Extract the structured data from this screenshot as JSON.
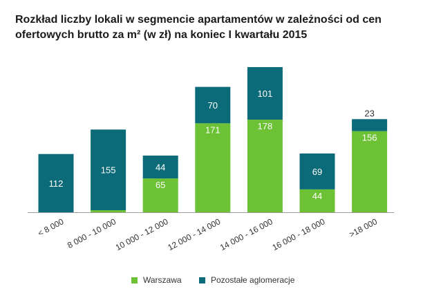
{
  "chart_data": {
    "type": "bar",
    "stacked": true,
    "title": "Rozkład liczby lokali w segmencie apartamentów w zależności od cen ofertowych brutto za m² (w zł) na koniec I kwartału 2015",
    "title_lines": [
      "Rozkład liczby lokali w segmencie apartamentów w zależności od cen",
      "ofertowych brutto za m² (w zł) na koniec I kwartału 2015"
    ],
    "xlabel": "",
    "ylabel": "",
    "categories": [
      "< 8 000",
      "8 000 - 10 000",
      "10 000 - 12 000",
      "12 000 - 14 000",
      "14 000 - 16 000",
      "16 000 - 18 000",
      ">18 000"
    ],
    "series": [
      {
        "name": "Warszawa",
        "color": "#6dc135",
        "values": [
          0,
          4,
          65,
          171,
          178,
          44,
          156
        ]
      },
      {
        "name": "Pozostałe aglomeracje",
        "color": "#0b6b78",
        "values": [
          112,
          155,
          44,
          70,
          101,
          69,
          23
        ]
      }
    ],
    "ylim": [
      0,
      285
    ],
    "grid": false,
    "legend": "bottom"
  }
}
